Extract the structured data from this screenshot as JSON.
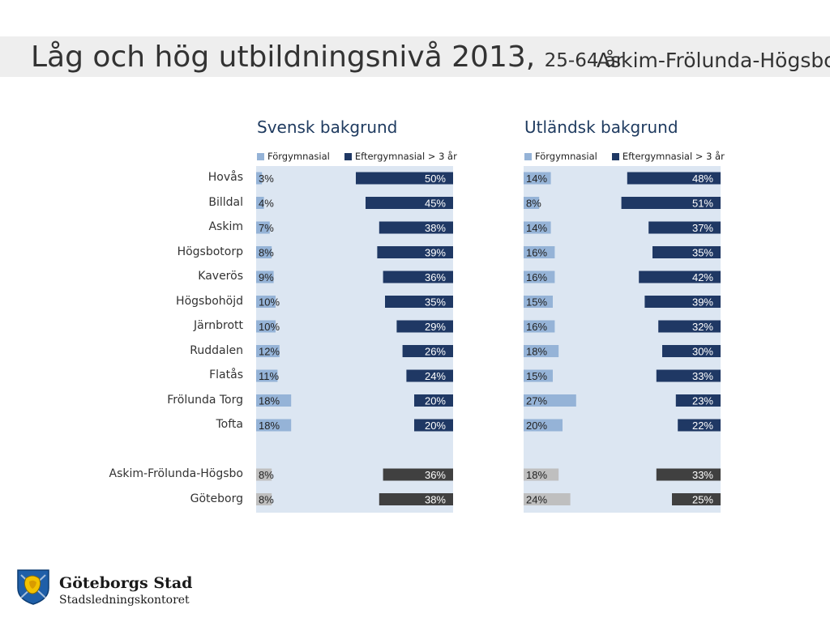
{
  "header": {
    "title_main": "Låg och hög utbildningsnivå 2013,",
    "title_sub": "25-64 år",
    "region": "Askim-Frölunda-Högsbo"
  },
  "colors": {
    "panel_bg": "#dce6f2",
    "low_area": "#95b3d7",
    "high_area": "#1f3864",
    "low_total": "#bfbfbf",
    "high_total": "#404040"
  },
  "chart_data": [
    {
      "type": "bar",
      "title": "Svensk bakgrund",
      "legend": [
        "Förgymnasial",
        "Eftergymnasial > 3 år"
      ],
      "categories": [
        "Hovås",
        "Billdal",
        "Askim",
        "Högsbotorp",
        "Kaverös",
        "Högsbohöjd",
        "Järnbrott",
        "Ruddalen",
        "Flatås",
        "Frölunda Torg",
        "Tofta",
        "Askim-Frölunda-Högsbo",
        "Göteborg"
      ],
      "series": [
        {
          "name": "Förgymnasial",
          "values": [
            3,
            4,
            7,
            8,
            9,
            10,
            10,
            12,
            11,
            18,
            18,
            8,
            8
          ]
        },
        {
          "name": "Eftergymnasial > 3 år",
          "values": [
            50,
            45,
            38,
            39,
            36,
            35,
            29,
            26,
            24,
            20,
            20,
            36,
            38
          ]
        }
      ],
      "total_categories": [
        "Askim-Frölunda-Högsbo",
        "Göteborg"
      ]
    },
    {
      "type": "bar",
      "title": "Utländsk bakgrund",
      "legend": [
        "Förgymnasial",
        "Eftergymnasial > 3 år"
      ],
      "categories": [
        "Hovås",
        "Billdal",
        "Askim",
        "Högsbotorp",
        "Kaverös",
        "Högsbohöjd",
        "Järnbrott",
        "Ruddalen",
        "Flatås",
        "Frölunda Torg",
        "Tofta",
        "Askim-Frölunda-Högsbo",
        "Göteborg"
      ],
      "series": [
        {
          "name": "Förgymnasial",
          "values": [
            14,
            8,
            14,
            16,
            16,
            15,
            16,
            18,
            15,
            27,
            20,
            18,
            24
          ]
        },
        {
          "name": "Eftergymnasial > 3 år",
          "values": [
            48,
            51,
            37,
            35,
            42,
            39,
            32,
            30,
            33,
            23,
            22,
            33,
            25
          ]
        }
      ],
      "total_categories": [
        "Askim-Frölunda-Högsbo",
        "Göteborg"
      ]
    }
  ],
  "footer": {
    "org_name": "Göteborgs Stad",
    "org_sub": "Stadsledningskontoret"
  }
}
